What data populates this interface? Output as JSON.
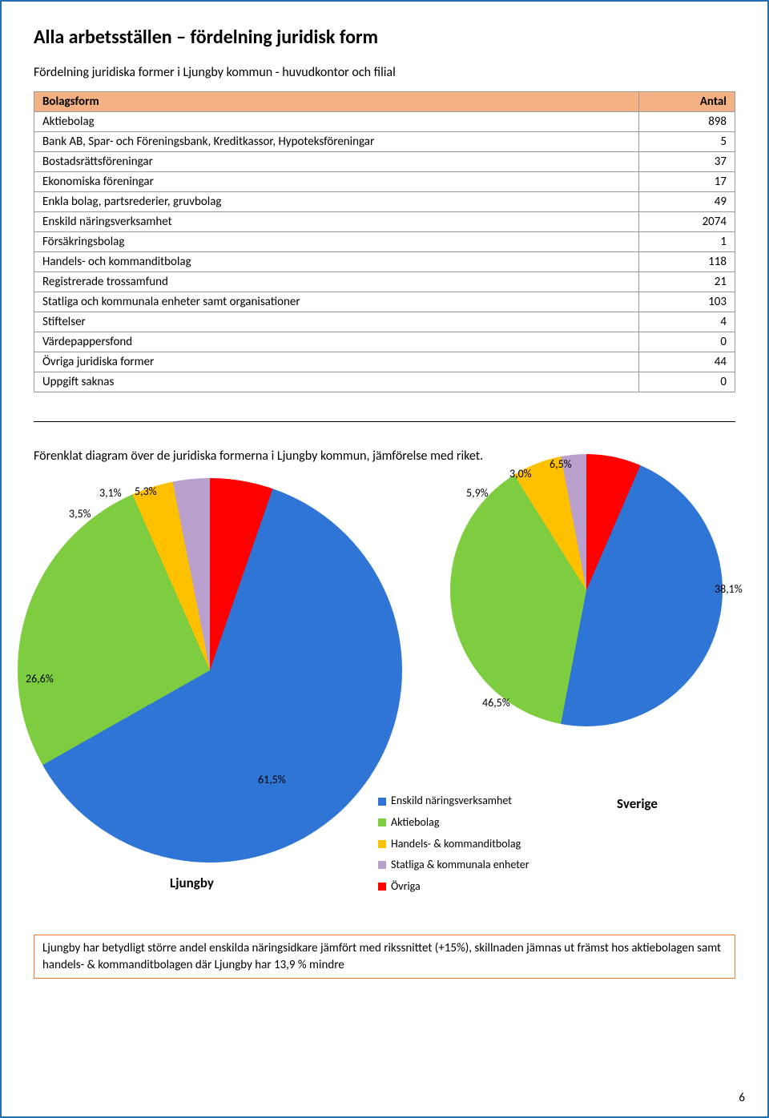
{
  "title": "Alla arbetsställen – fördelning juridisk form",
  "subtitle": "Fördelning juridiska former i Ljungby kommun - huvudkontor och filial",
  "table": {
    "header": {
      "col1": "Bolagsform",
      "col2": "Antal"
    },
    "rows": [
      {
        "label": "Aktiebolag",
        "value": "898"
      },
      {
        "label": "Bank AB, Spar- och Föreningsbank, Kreditkassor, Hypoteksföreningar",
        "value": "5"
      },
      {
        "label": "Bostadsrättsföreningar",
        "value": "37"
      },
      {
        "label": "Ekonomiska föreningar",
        "value": "17"
      },
      {
        "label": "Enkla bolag, partsrederier, gruvbolag",
        "value": "49"
      },
      {
        "label": "Enskild näringsverksamhet",
        "value": "2074"
      },
      {
        "label": "Försäkringsbolag",
        "value": "1"
      },
      {
        "label": "Handels- och kommanditbolag",
        "value": "118"
      },
      {
        "label": "Registrerade trossamfund",
        "value": "21"
      },
      {
        "label": "Statliga och kommunala enheter samt organisationer",
        "value": "103"
      },
      {
        "label": "Stiftelser",
        "value": "4"
      },
      {
        "label": "Värdepappersfond",
        "value": "0"
      },
      {
        "label": "Övriga juridiska former",
        "value": "44"
      },
      {
        "label": "Uppgift saknas",
        "value": "0"
      }
    ]
  },
  "chart_intro": "Förenklat diagram över de juridiska formerna i Ljungby kommun, jämförelse med riket.",
  "colors": {
    "blue": "#2e75d6",
    "green": "#7ecc3f",
    "orange": "#ffc000",
    "purple": "#b9a0cd",
    "red": "#ff0000"
  },
  "pie_left": {
    "name": "Ljungby",
    "labels": {
      "p1": "3,1%",
      "p2": "5,3%",
      "p3": "3,5%",
      "p4": "26,6%",
      "p5": "61,5%"
    },
    "slices": [
      {
        "pct": 61.5,
        "color": "#2e75d6"
      },
      {
        "pct": 26.6,
        "color": "#7ecc3f"
      },
      {
        "pct": 3.5,
        "color": "#ffc000"
      },
      {
        "pct": 3.1,
        "color": "#b9a0cd"
      },
      {
        "pct": 5.3,
        "color": "#ff0000"
      }
    ]
  },
  "pie_right": {
    "name": "Sverige",
    "labels": {
      "p1": "3,0%",
      "p2": "6,5%",
      "p3": "5,9%",
      "p4": "46,5%",
      "p5": "38,1%"
    },
    "slices": [
      {
        "pct": 46.5,
        "color": "#2e75d6"
      },
      {
        "pct": 38.1,
        "color": "#7ecc3f"
      },
      {
        "pct": 5.9,
        "color": "#ffc000"
      },
      {
        "pct": 3.0,
        "color": "#b9a0cd"
      },
      {
        "pct": 6.5,
        "color": "#ff0000"
      }
    ]
  },
  "legend": {
    "items": [
      {
        "label": "Enskild näringsverksamhet",
        "color": "#2e75d6"
      },
      {
        "label": "Aktiebolag",
        "color": "#7ecc3f"
      },
      {
        "label": "Handels- & kommanditbolag",
        "color": "#ffc000"
      },
      {
        "label": "Statliga & kommunala enheter",
        "color": "#b9a0cd"
      },
      {
        "label": "Övriga",
        "color": "#ff0000"
      }
    ]
  },
  "footnote": "Ljungby har betydligt större andel enskilda näringsidkare jämfört med rikssnittet (+15%), skillnaden jämnas ut främst hos aktiebolagen samt handels- & kommanditbolagen där Ljungby har 13,9 % mindre",
  "page_number": "6"
}
